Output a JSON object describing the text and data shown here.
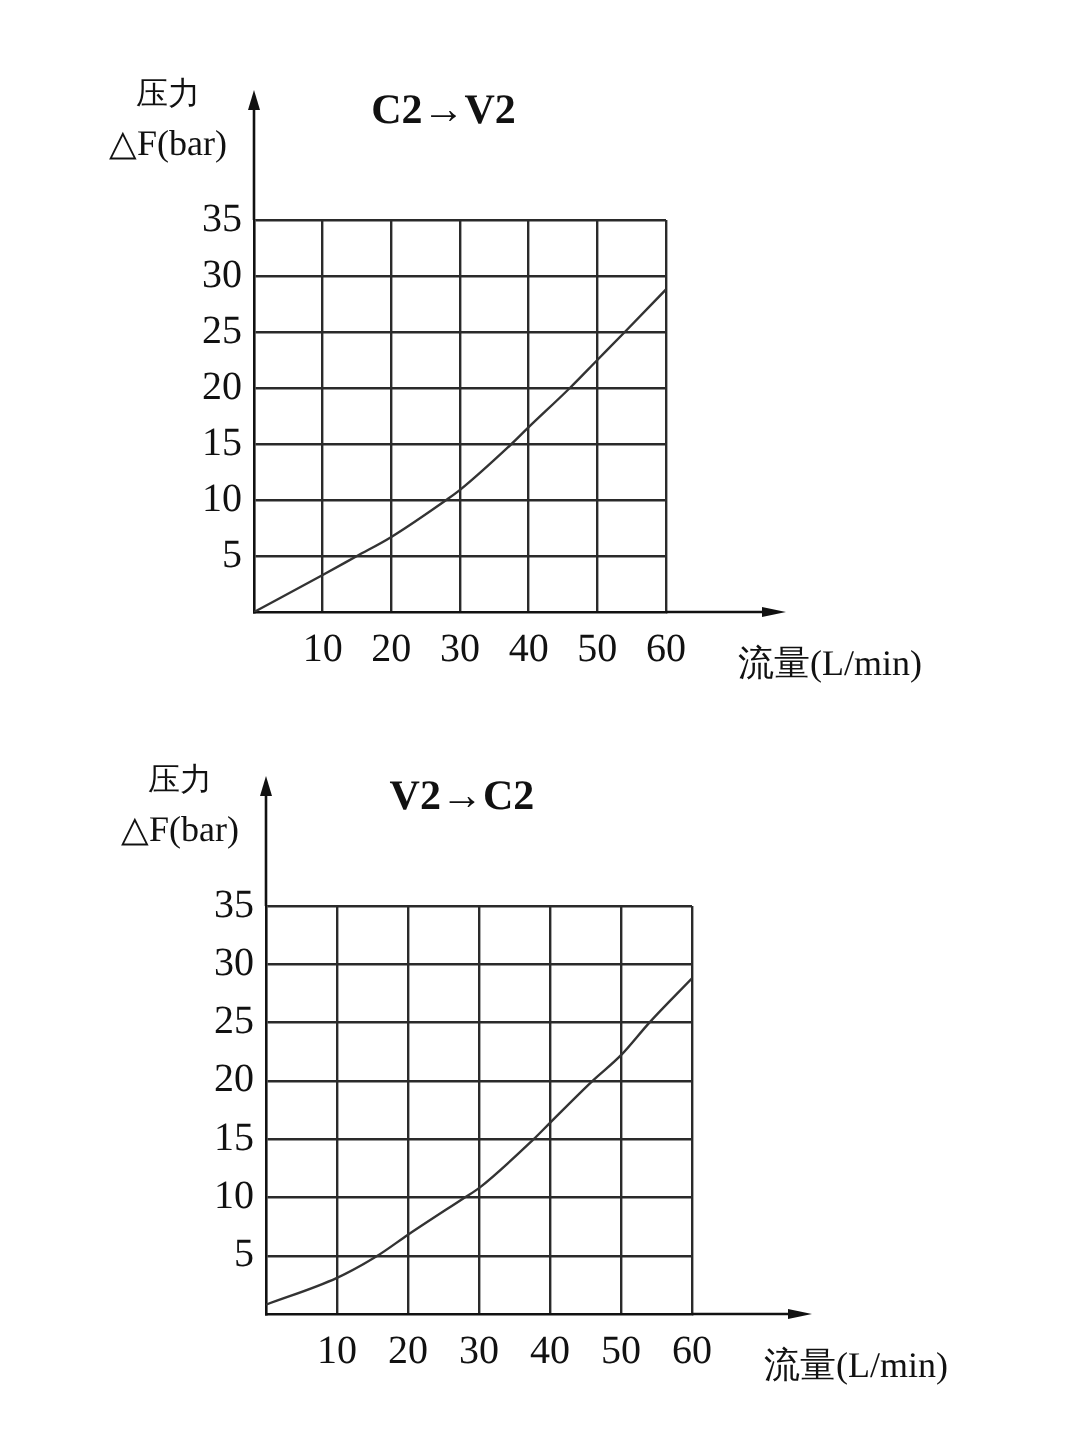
{
  "chart_data": [
    {
      "type": "line",
      "title": "C2→V2",
      "xlabel": "流量(L/min)",
      "ylabel": "压力\n△F(bar)",
      "x": [
        0,
        10,
        15,
        20,
        28,
        30,
        37.5,
        40,
        46,
        50,
        54,
        60
      ],
      "values": [
        0,
        3.3,
        5,
        6.7,
        10,
        10.9,
        15,
        16.5,
        20,
        22.5,
        25,
        28.8
      ],
      "color": "#333333",
      "xlim": [
        0,
        60
      ],
      "xticks": [
        10,
        20,
        30,
        40,
        50,
        60
      ],
      "ylim": [
        0,
        35
      ],
      "yticks": [
        5,
        10,
        15,
        20,
        25,
        30,
        35
      ],
      "grid": true,
      "marker": "none",
      "line_style": "solid"
    },
    {
      "type": "line",
      "title": "V2→C2",
      "xlabel": "流量(L/min)",
      "ylabel": "压力\n△F(bar)",
      "x": [
        0,
        10,
        15.7,
        20,
        28,
        30,
        37.7,
        40,
        46,
        50,
        54,
        60
      ],
      "values": [
        0.8,
        3.1,
        5,
        6.8,
        10,
        10.8,
        15,
        16.4,
        20,
        22.2,
        25,
        28.8
      ],
      "color": "#333333",
      "xlim": [
        0,
        60
      ],
      "xticks": [
        10,
        20,
        30,
        40,
        50,
        60
      ],
      "ylim": [
        0,
        35
      ],
      "yticks": [
        5,
        10,
        15,
        20,
        25,
        30,
        35
      ],
      "grid": true,
      "marker": "none",
      "line_style": "solid"
    }
  ]
}
